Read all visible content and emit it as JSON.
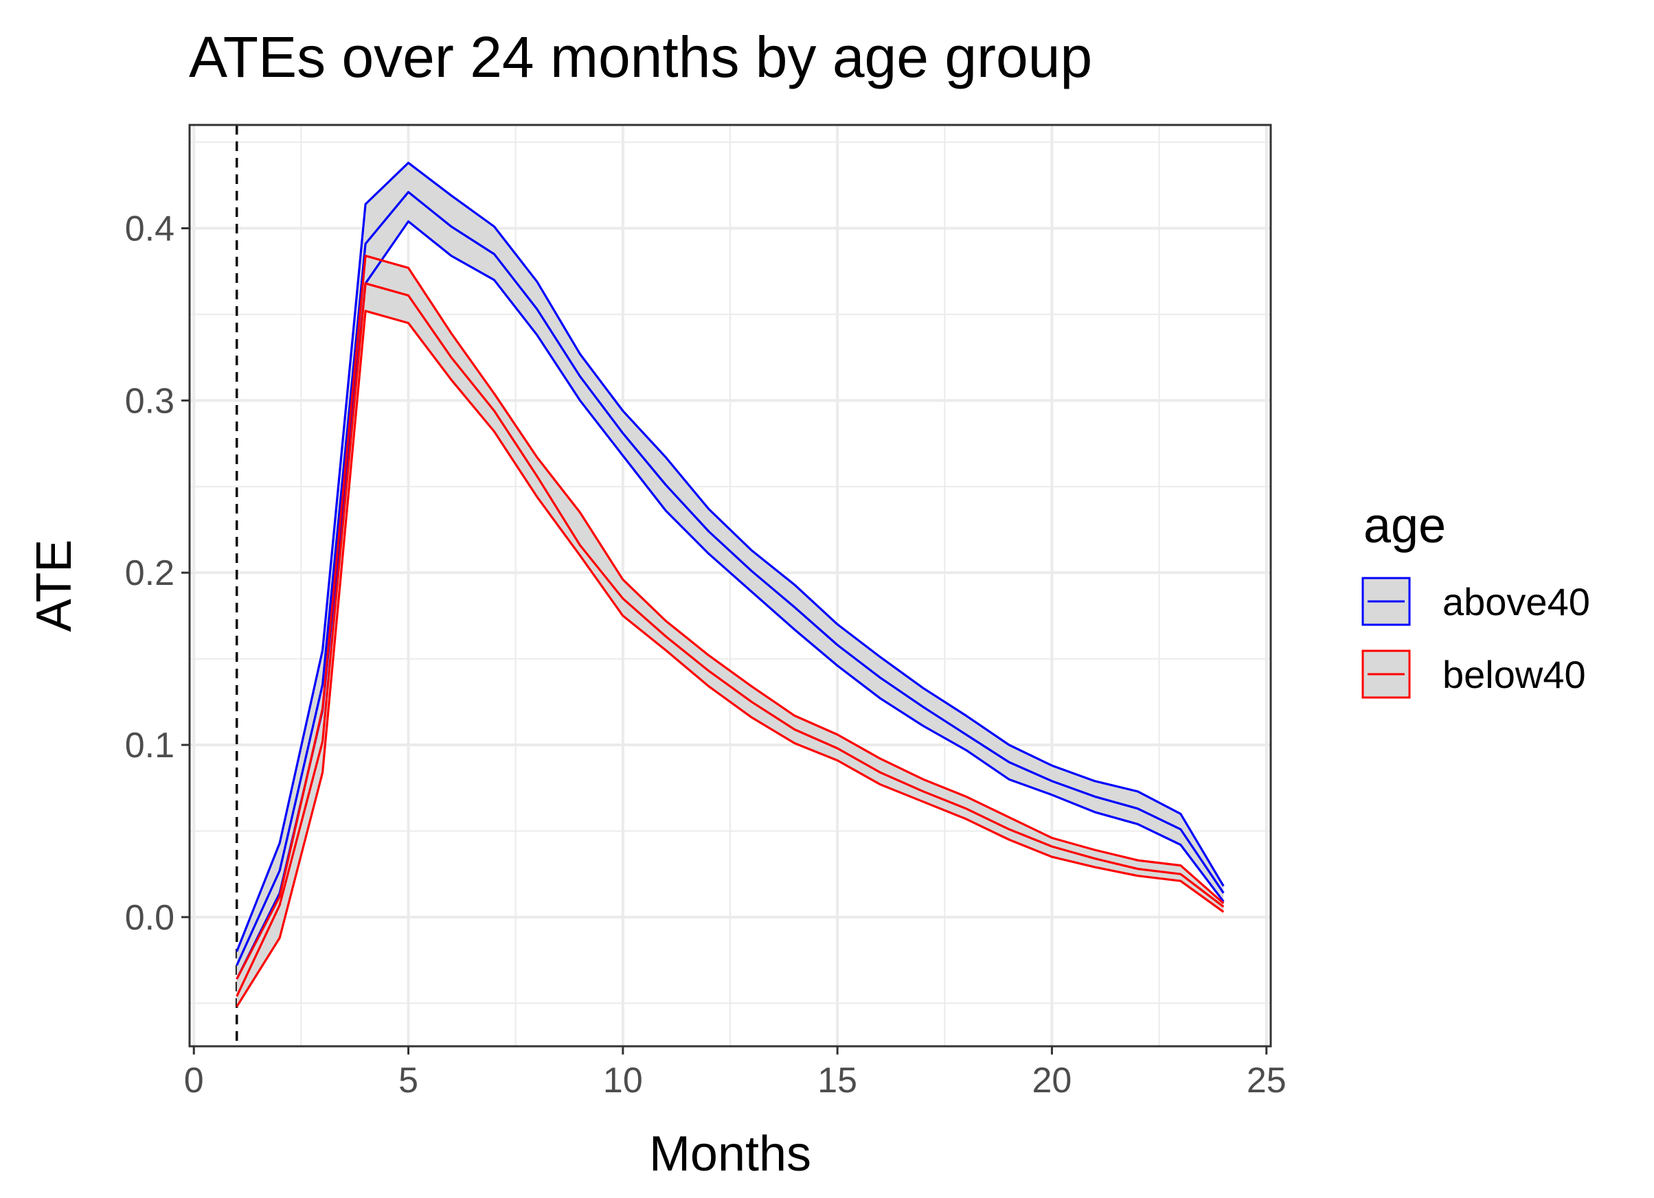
{
  "chart_data": {
    "type": "line",
    "title": "ATEs over 24 months by age group",
    "xlabel": "Months",
    "ylabel": "ATE",
    "xlim": [
      -0.1,
      25.1
    ],
    "ylim": [
      -0.075,
      0.46
    ],
    "x_ticks": [
      0,
      5,
      10,
      15,
      20,
      25
    ],
    "x_tick_labels": [
      "0",
      "5",
      "10",
      "15",
      "20",
      "25"
    ],
    "y_ticks": [
      0.0,
      0.1,
      0.2,
      0.3,
      0.4
    ],
    "y_tick_labels": [
      "0.0",
      "0.1",
      "0.2",
      "0.3",
      "0.4"
    ],
    "vline_x": 1,
    "grid": true,
    "legend_title": "age",
    "legend_position": "right",
    "ribbon_fill": "#d9d9d9",
    "x": [
      1,
      2,
      3,
      4,
      5,
      6,
      7,
      8,
      9,
      10,
      11,
      12,
      13,
      14,
      15,
      16,
      17,
      18,
      19,
      20,
      21,
      22,
      23,
      24
    ],
    "series": [
      {
        "name": "above40",
        "color": "#0000ff",
        "values": [
          -0.028,
          0.027,
          0.135,
          0.391,
          0.421,
          0.401,
          0.385,
          0.353,
          0.314,
          0.281,
          0.251,
          0.224,
          0.201,
          0.18,
          0.158,
          0.139,
          0.122,
          0.106,
          0.09,
          0.079,
          0.07,
          0.063,
          0.051,
          0.014
        ],
        "upper": [
          -0.02,
          0.043,
          0.155,
          0.414,
          0.438,
          0.419,
          0.401,
          0.369,
          0.327,
          0.294,
          0.267,
          0.237,
          0.213,
          0.193,
          0.17,
          0.151,
          0.133,
          0.117,
          0.1,
          0.088,
          0.079,
          0.073,
          0.06,
          0.018
        ],
        "lower": [
          -0.036,
          0.014,
          0.12,
          0.368,
          0.404,
          0.384,
          0.37,
          0.338,
          0.3,
          0.268,
          0.236,
          0.211,
          0.189,
          0.167,
          0.146,
          0.127,
          0.111,
          0.097,
          0.08,
          0.071,
          0.061,
          0.054,
          0.042,
          0.009
        ]
      },
      {
        "name": "below40",
        "color": "#ff0000",
        "values": [
          -0.046,
          0.007,
          0.102,
          0.368,
          0.361,
          0.325,
          0.294,
          0.256,
          0.216,
          0.185,
          0.163,
          0.143,
          0.125,
          0.109,
          0.098,
          0.084,
          0.073,
          0.063,
          0.051,
          0.041,
          0.034,
          0.028,
          0.025,
          0.006
        ],
        "upper": [
          -0.036,
          0.012,
          0.121,
          0.384,
          0.377,
          0.339,
          0.304,
          0.267,
          0.235,
          0.196,
          0.172,
          0.152,
          0.134,
          0.117,
          0.106,
          0.092,
          0.08,
          0.07,
          0.058,
          0.046,
          0.039,
          0.033,
          0.03,
          0.008
        ],
        "lower": [
          -0.052,
          -0.012,
          0.084,
          0.352,
          0.345,
          0.312,
          0.282,
          0.244,
          0.21,
          0.175,
          0.155,
          0.134,
          0.116,
          0.101,
          0.091,
          0.077,
          0.067,
          0.057,
          0.045,
          0.035,
          0.029,
          0.024,
          0.021,
          0.003
        ]
      }
    ]
  }
}
